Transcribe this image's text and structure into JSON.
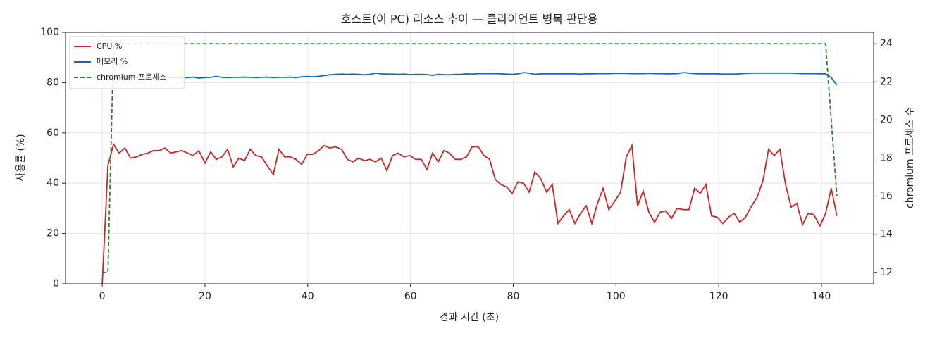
{
  "chart_data": {
    "type": "line",
    "title": "호스트(이 PC) 리소스 추이 — 클라이언트 병목 판단용",
    "x_label": "경과 시간 (초)",
    "y_label": "사용률 (%)",
    "y2_label": "chromium 프로세스 수",
    "xlim": [
      -7.15,
      150.15
    ],
    "xticks": [
      0,
      20,
      40,
      60,
      80,
      100,
      120,
      140
    ],
    "ylim": [
      0,
      100
    ],
    "yticks": [
      0,
      20,
      40,
      60,
      80,
      100
    ],
    "y2lim": [
      11.4,
      24.6
    ],
    "y2ticks": [
      12,
      14,
      16,
      18,
      20,
      22,
      24
    ],
    "grid": true,
    "legend": "upper left",
    "x": [
      0,
      1.1,
      2.2,
      3.3,
      4.4,
      5.5,
      6.7,
      7.8,
      8.9,
      10,
      11.1,
      12.2,
      13.3,
      14.4,
      15.5,
      16.6,
      17.7,
      18.8,
      20,
      21.1,
      22.2,
      23.3,
      24.4,
      25.5,
      26.6,
      27.7,
      28.8,
      29.9,
      31,
      32.1,
      33.3,
      34.4,
      35.5,
      36.6,
      37.7,
      38.8,
      39.9,
      41,
      42.1,
      43.2,
      44.3,
      45.4,
      46.6,
      47.7,
      48.8,
      49.9,
      51,
      52.1,
      53.2,
      54.3,
      55.4,
      56.5,
      57.6,
      58.7,
      59.9,
      61,
      62.1,
      63.2,
      64.3,
      65.4,
      66.5,
      67.6,
      68.7,
      69.8,
      70.9,
      72,
      73.2,
      74.3,
      75.4,
      76.5,
      77.6,
      78.7,
      79.8,
      80.9,
      82,
      83.1,
      84.2,
      85.3,
      86.5,
      87.6,
      88.7,
      89.8,
      90.9,
      92,
      93.1,
      94.2,
      95.3,
      96.4,
      97.5,
      98.6,
      99.8,
      100.9,
      102,
      103.1,
      104.2,
      105.3,
      106.4,
      107.5,
      108.6,
      109.7,
      110.8,
      111.9,
      113.1,
      114.2,
      115.3,
      116.4,
      117.5,
      118.6,
      119.7,
      120.8,
      121.9,
      123,
      124.1,
      125.2,
      126.4,
      127.5,
      128.6,
      129.7,
      130.8,
      131.9,
      133,
      134.1,
      135.2,
      136.3,
      137.4,
      138.5,
      139.7,
      140.8,
      141.9,
      143
    ],
    "series": [
      {
        "name": "CPU %",
        "color": "#c62828",
        "style": "solid",
        "values": [
          0,
          47,
          55.5,
          52,
          54,
          50,
          50.5,
          51.5,
          52,
          53,
          53,
          54,
          52,
          52.5,
          53,
          52,
          51,
          53,
          48,
          52.5,
          49.5,
          50.5,
          53.5,
          46.5,
          50,
          49,
          53.5,
          51,
          50.5,
          47,
          43.5,
          53.5,
          50.5,
          50.5,
          49.5,
          47.5,
          51.5,
          51.5,
          53,
          55,
          54,
          54.5,
          53.5,
          49.5,
          48.5,
          50,
          49,
          49.5,
          48.5,
          50,
          45,
          51,
          52,
          50.5,
          51,
          49.5,
          49.5,
          45.5,
          52,
          48.5,
          53,
          52,
          49.5,
          49.5,
          50.5,
          54.5,
          54.5,
          51,
          49.5,
          41.5,
          39.5,
          38.5,
          36,
          40.5,
          40,
          36.5,
          44.5,
          42,
          36.5,
          39.5,
          24,
          27,
          29.5,
          24,
          28,
          31,
          24,
          32,
          38,
          29.5,
          33,
          36.5,
          50.5,
          55,
          31,
          37,
          28.5,
          24.5,
          28.5,
          29,
          26,
          30,
          29.5,
          29.5,
          38,
          36,
          39.5,
          27,
          26.5,
          24,
          26.5,
          28,
          24.5,
          26.5,
          31,
          34.5,
          41,
          53.5,
          51,
          53.5,
          39.5,
          30.5,
          32,
          23.5,
          28,
          27.5,
          23,
          28,
          38,
          27
        ]
      },
      {
        "name": "메모리 %",
        "color": "#1565c0",
        "style": "solid",
        "values": [
          81,
          81.5,
          81.8,
          81.8,
          82,
          82,
          82,
          81.9,
          82,
          82,
          82.1,
          82,
          82,
          82.1,
          81.9,
          82,
          82.2,
          81.8,
          82,
          82.1,
          82.5,
          82.1,
          82,
          82.1,
          82.1,
          82.2,
          82.1,
          82,
          82.1,
          82.2,
          82,
          82.1,
          82.1,
          82.2,
          82,
          82.3,
          82.4,
          82.3,
          82.5,
          82.8,
          83.1,
          83.3,
          83.4,
          83.3,
          83.4,
          83.3,
          83.1,
          83.3,
          83.8,
          83.5,
          83.4,
          83.4,
          83.3,
          83.4,
          83.2,
          83.3,
          83.3,
          83.2,
          82.9,
          83.3,
          83.2,
          83.1,
          83.3,
          83.3,
          83.5,
          83.4,
          83.6,
          83.6,
          83.6,
          83.6,
          83.5,
          83.4,
          83.3,
          83.5,
          84,
          83.8,
          83.3,
          83.5,
          83.5,
          83.5,
          83.5,
          83.5,
          83.5,
          83.5,
          83.4,
          83.5,
          83.5,
          83.6,
          83.6,
          83.6,
          83.7,
          83.7,
          83.7,
          83.6,
          83.6,
          83.6,
          83.7,
          83.6,
          83.6,
          83.5,
          83.5,
          83.6,
          84,
          83.8,
          83.6,
          83.5,
          83.5,
          83.5,
          83.5,
          83.4,
          83.4,
          83.4,
          83.5,
          83.7,
          83.8,
          83.8,
          83.8,
          83.8,
          83.8,
          83.8,
          83.8,
          83.8,
          83.7,
          83.6,
          83.6,
          83.6,
          83.5,
          83.5,
          82,
          79
        ]
      },
      {
        "name": "chromium 프로세스",
        "color": "#2e7d32",
        "style": "dashed",
        "axis": "y2",
        "values": [
          12,
          12,
          24,
          24,
          24,
          24,
          24,
          24,
          24,
          24,
          24,
          24,
          24,
          24,
          24,
          24,
          24,
          24,
          24,
          24,
          24,
          24,
          24,
          24,
          24,
          24,
          24,
          24,
          24,
          24,
          24,
          24,
          24,
          24,
          24,
          24,
          24,
          24,
          24,
          24,
          24,
          24,
          24,
          24,
          24,
          24,
          24,
          24,
          24,
          24,
          24,
          24,
          24,
          24,
          24,
          24,
          24,
          24,
          24,
          24,
          24,
          24,
          24,
          24,
          24,
          24,
          24,
          24,
          24,
          24,
          24,
          24,
          24,
          24,
          24,
          24,
          24,
          24,
          24,
          24,
          24,
          24,
          24,
          24,
          24,
          24,
          24,
          24,
          24,
          24,
          24,
          24,
          24,
          24,
          24,
          24,
          24,
          24,
          24,
          24,
          24,
          24,
          24,
          24,
          24,
          24,
          24,
          24,
          24,
          24,
          24,
          24,
          24,
          24,
          24,
          24,
          24,
          24,
          24,
          24,
          24,
          24,
          24,
          24,
          24,
          24,
          24,
          24,
          20,
          16
        ]
      }
    ]
  }
}
